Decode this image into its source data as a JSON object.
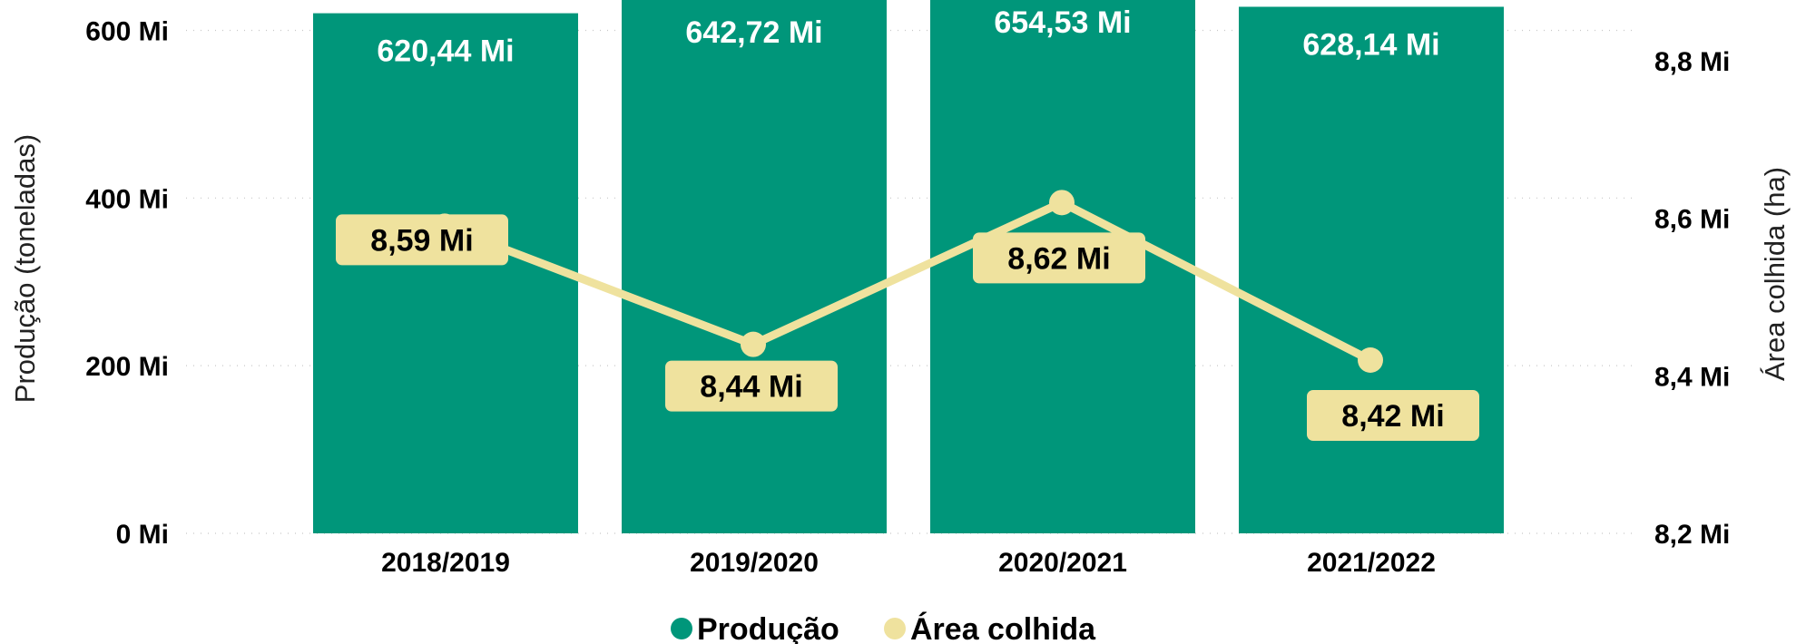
{
  "colors": {
    "bar": "#00967A",
    "line": "#EFE29E",
    "bar_label": "#ffffff",
    "line_label": "#000000",
    "grid": "#c8c8c8"
  },
  "legend": {
    "items": [
      {
        "label": "Produção",
        "color": "#00967A"
      },
      {
        "label": "Área colhida",
        "color": "#EFE29E"
      }
    ],
    "placement": "bottom-center"
  },
  "chart_data": {
    "type": "bar",
    "grid": true,
    "categories": [
      "2018/2019",
      "2019/2020",
      "2020/2021",
      "2021/2022"
    ],
    "ylabel": "Produção (toneladas)",
    "y2label": "Área colhida (ha)",
    "ylim": [
      0,
      620
    ],
    "y2lim": [
      8.2,
      8.86
    ],
    "yticks": [
      0,
      200,
      400,
      600
    ],
    "yticklabels": [
      "0 Mi",
      "200 Mi",
      "400 Mi",
      "600 Mi"
    ],
    "y2ticks": [
      8.2,
      8.4,
      8.6,
      8.8
    ],
    "y2ticklabels": [
      "8,2 Mi",
      "8,4 Mi",
      "8,6 Mi",
      "8,8 Mi"
    ],
    "series": [
      {
        "name": "Produção",
        "type": "bar",
        "axis": "left",
        "values": [
          620.44,
          642.72,
          654.53,
          628.14
        ],
        "labels": [
          "620,44 Mi",
          "642,72 Mi",
          "654,53 Mi",
          "628,14 Mi"
        ]
      },
      {
        "name": "Área colhida",
        "type": "line",
        "axis": "right",
        "values": [
          8.59,
          8.44,
          8.62,
          8.42
        ],
        "labels": [
          "8,59 Mi",
          "8,44 Mi",
          "8,62 Mi",
          "8,42 Mi"
        ]
      }
    ]
  }
}
